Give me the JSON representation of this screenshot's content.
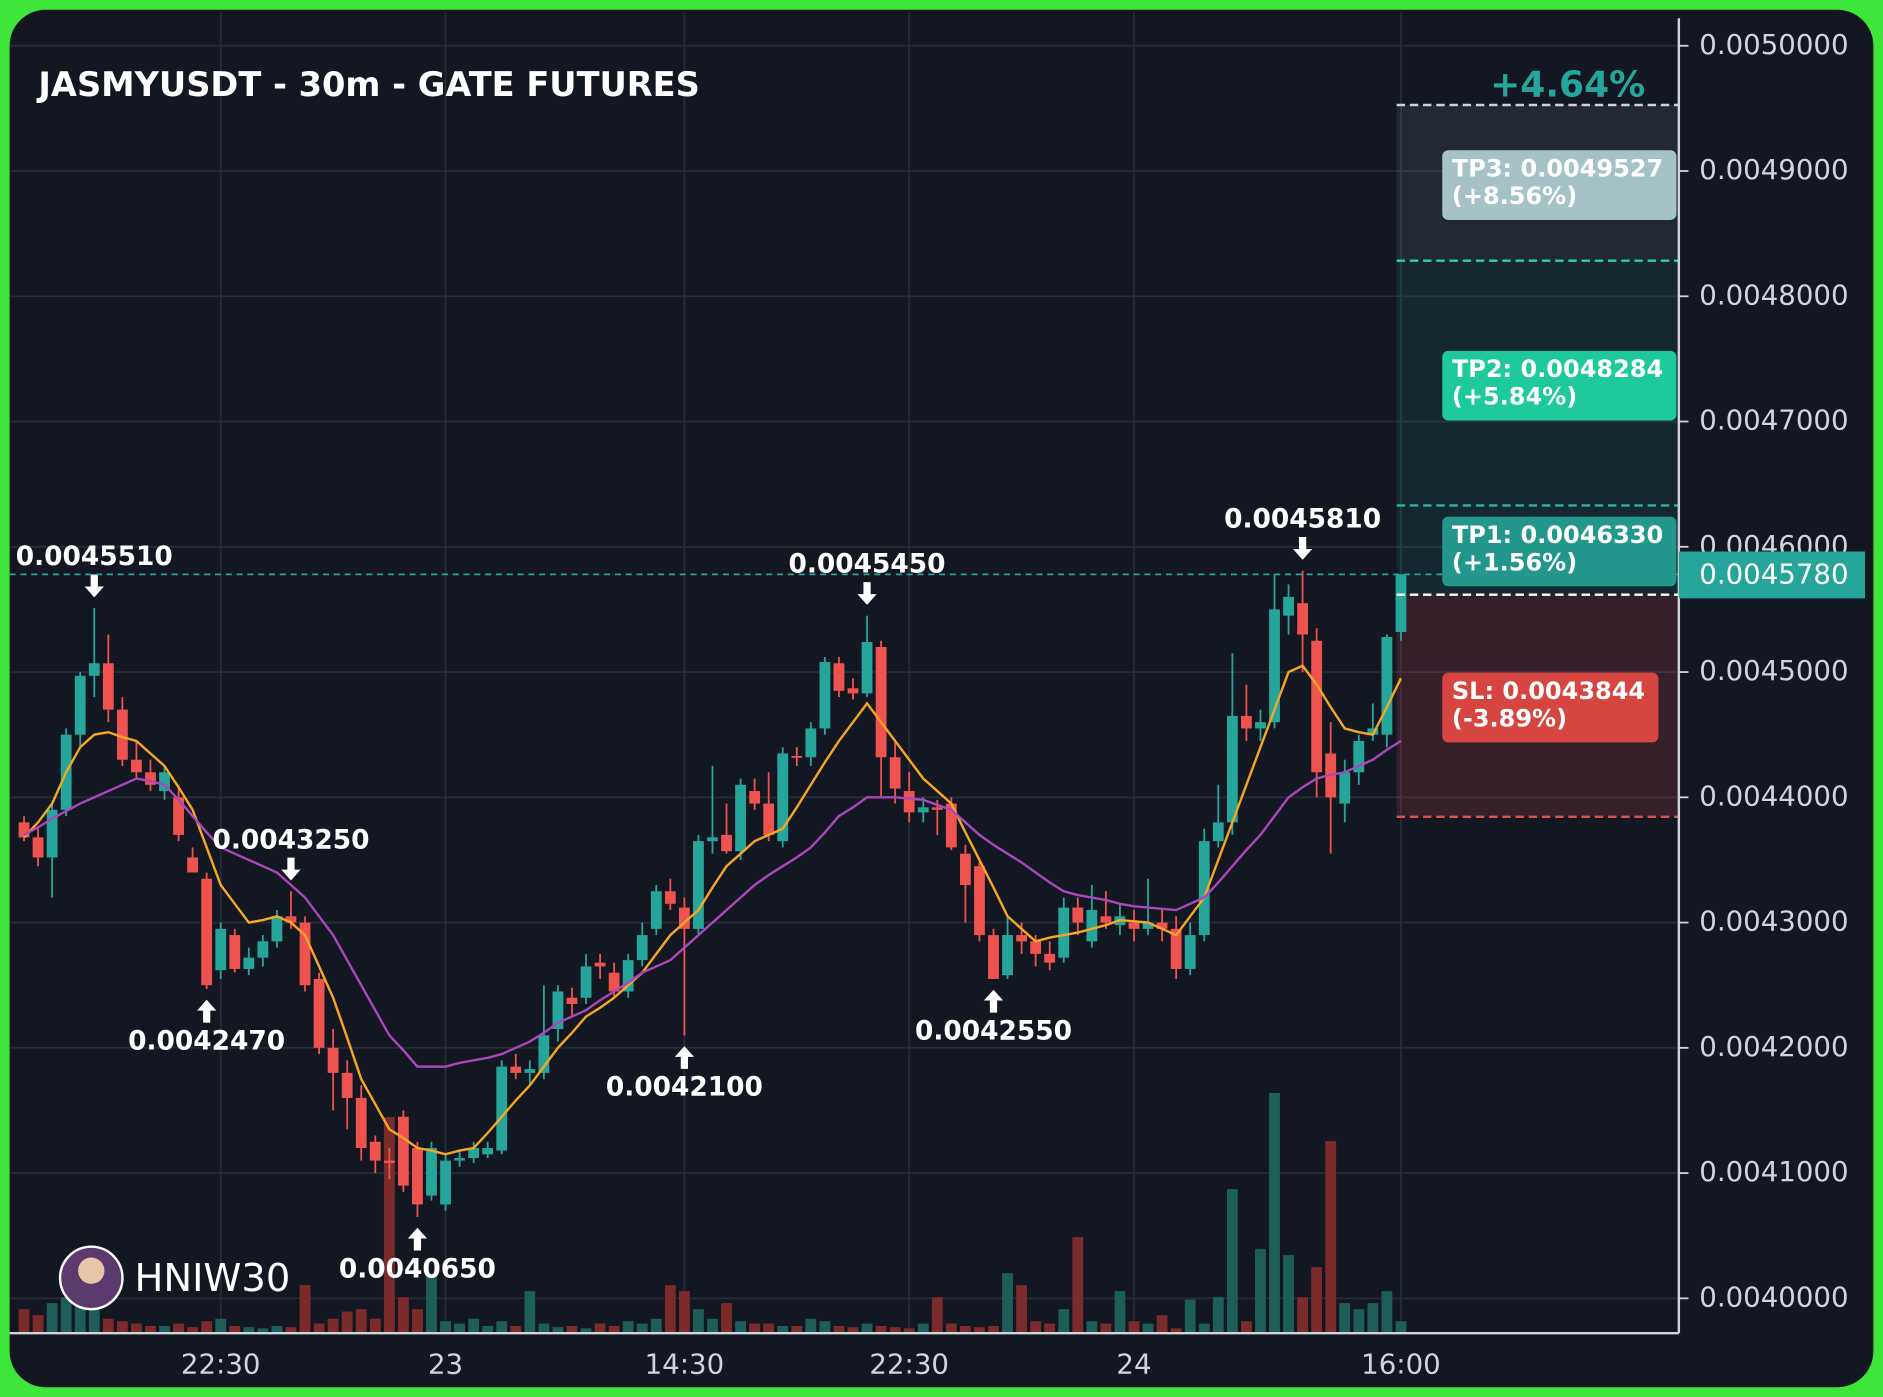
{
  "chart_data": {
    "type": "candlestick",
    "title": "JASMYUSDT - 30m - GATE FUTURES",
    "watermark": "HNIW30",
    "categories": [
      null,
      null,
      null,
      null,
      null,
      null,
      null,
      null,
      null,
      null,
      null,
      null,
      null,
      null,
      "22:30",
      null,
      null,
      null,
      null,
      null,
      null,
      null,
      null,
      null,
      null,
      null,
      null,
      null,
      null,
      null,
      "23",
      null,
      null,
      null,
      null,
      null,
      null,
      null,
      null,
      null,
      null,
      null,
      null,
      null,
      null,
      null,
      null,
      "14:30",
      null,
      null,
      null,
      null,
      null,
      null,
      null,
      null,
      null,
      null,
      null,
      null,
      null,
      null,
      null,
      "22:30",
      null,
      null,
      null,
      null,
      null,
      null,
      null,
      null,
      null,
      null,
      null,
      null,
      null,
      null,
      null,
      "24",
      null,
      null,
      null,
      null,
      null,
      null,
      null,
      null,
      null,
      null,
      null,
      null,
      null,
      null,
      null,
      null,
      null,
      null,
      "16:00"
    ],
    "open": [
      0.00438,
      0.004368,
      0.004352,
      0.00439,
      0.00445,
      0.004497,
      0.004507,
      0.00447,
      0.00443,
      0.00442,
      0.004405,
      0.0044,
      0.004352,
      0.004335,
      0.004262,
      0.00429,
      0.004263,
      0.004272,
      0.004285,
      0.004305,
      0.0043,
      0.004255,
      0.0042,
      0.00418,
      0.00416,
      0.004125,
      0.00411,
      0.004145,
      0.00412,
      0.004082,
      0.004075,
      0.00411,
      0.004112,
      0.004115,
      0.004118,
      0.004185,
      0.00418,
      0.00418,
      0.004215,
      0.00424,
      0.00424,
      0.004268,
      0.00426,
      0.004245,
      0.00427,
      0.004295,
      0.004325,
      0.004312,
      0.004295,
      0.004365,
      0.00437,
      0.004357,
      0.004405,
      0.004395,
      0.004365,
      0.004433,
      0.004432,
      0.004455,
      0.004507,
      0.004487,
      0.004483,
      0.00452,
      0.004432,
      0.004405,
      0.004388,
      0.004392,
      0.004395,
      0.004355,
      0.004345,
      0.00429,
      0.004258,
      0.00429,
      0.004285,
      0.004275,
      0.004272,
      0.004312,
      0.004285,
      0.004305,
      0.004298,
      0.0043,
      0.004295,
      0.0043,
      0.004295,
      0.004263,
      0.00429,
      0.004365,
      0.00438,
      0.004465,
      0.004455,
      0.00446,
      0.004545,
      0.004555,
      0.004525,
      0.004435,
      0.004395,
      0.00442,
      0.00445,
      0.00445,
      0.004532
    ],
    "high": [
      0.004385,
      0.004375,
      0.004395,
      0.004455,
      0.0045,
      0.004551,
      0.00453,
      0.00448,
      0.004445,
      0.00443,
      0.004425,
      0.00441,
      0.00436,
      0.00434,
      0.0043,
      0.004295,
      0.00428,
      0.00429,
      0.00431,
      0.004325,
      0.004305,
      0.00426,
      0.004215,
      0.00419,
      0.00417,
      0.00413,
      0.00412,
      0.00415,
      0.004125,
      0.004125,
      0.004115,
      0.004118,
      0.004125,
      0.004125,
      0.00419,
      0.004195,
      0.00419,
      0.00425,
      0.00425,
      0.004248,
      0.004275,
      0.004275,
      0.004268,
      0.004275,
      0.0043,
      0.00433,
      0.004335,
      0.00432,
      0.00437,
      0.004425,
      0.004395,
      0.004415,
      0.004415,
      0.00442,
      0.00444,
      0.00444,
      0.00446,
      0.004512,
      0.004512,
      0.004495,
      0.004545,
      0.004525,
      0.004445,
      0.00442,
      0.0044,
      0.004398,
      0.0044,
      0.004362,
      0.00435,
      0.004295,
      0.004305,
      0.0043,
      0.00429,
      0.004285,
      0.00432,
      0.00432,
      0.00433,
      0.004325,
      0.004315,
      0.00431,
      0.004335,
      0.00431,
      0.004305,
      0.0043,
      0.004375,
      0.00441,
      0.004515,
      0.00449,
      0.00447,
      0.004578,
      0.00457,
      0.004581,
      0.004535,
      0.00446,
      0.00443,
      0.00445,
      0.004475,
      0.00453,
      0.004578
    ],
    "low": [
      0.004365,
      0.004345,
      0.00432,
      0.004385,
      0.00444,
      0.00448,
      0.00446,
      0.004425,
      0.004415,
      0.004405,
      0.004398,
      0.004365,
      0.00434,
      0.004247,
      0.004255,
      0.00426,
      0.004258,
      0.004265,
      0.00428,
      0.004295,
      0.004245,
      0.004195,
      0.00415,
      0.004135,
      0.00411,
      0.0041,
      0.004095,
      0.004085,
      0.004065,
      0.004078,
      0.00407,
      0.004105,
      0.004108,
      0.004112,
      0.004115,
      0.004175,
      0.00417,
      0.004175,
      0.004205,
      0.004225,
      0.004235,
      0.004255,
      0.00424,
      0.00424,
      0.004265,
      0.00429,
      0.00431,
      0.00421,
      0.00429,
      0.004355,
      0.004355,
      0.00435,
      0.00439,
      0.004365,
      0.00436,
      0.004425,
      0.004425,
      0.00445,
      0.00448,
      0.004478,
      0.00448,
      0.0044,
      0.004395,
      0.00438,
      0.00438,
      0.00437,
      0.004358,
      0.0043,
      0.004285,
      0.004255,
      0.004255,
      0.004275,
      0.004265,
      0.004262,
      0.004268,
      0.00429,
      0.00428,
      0.004295,
      0.00429,
      0.004285,
      0.00429,
      0.004285,
      0.004255,
      0.004258,
      0.004285,
      0.00436,
      0.00437,
      0.004445,
      0.004445,
      0.004455,
      0.00453,
      0.0045,
      0.0044,
      0.004355,
      0.00438,
      0.00441,
      0.004445,
      0.00444,
      0.004525
    ],
    "close": [
      0.004368,
      0.004352,
      0.00439,
      0.00445,
      0.004497,
      0.004507,
      0.00447,
      0.00443,
      0.00442,
      0.00441,
      0.00442,
      0.00437,
      0.00434,
      0.00425,
      0.004295,
      0.004263,
      0.004272,
      0.004285,
      0.004305,
      0.0043,
      0.00425,
      0.0042,
      0.00418,
      0.00416,
      0.00412,
      0.00411,
      0.004108,
      0.00409,
      0.004075,
      0.00412,
      0.00411,
      0.004112,
      0.00412,
      0.00412,
      0.004185,
      0.00418,
      0.004183,
      0.00421,
      0.004245,
      0.004235,
      0.004265,
      0.004265,
      0.004245,
      0.00427,
      0.00429,
      0.004325,
      0.004315,
      0.004295,
      0.004365,
      0.004368,
      0.004357,
      0.00441,
      0.004395,
      0.00437,
      0.004435,
      0.004432,
      0.004455,
      0.004508,
      0.004485,
      0.004483,
      0.004524,
      0.004432,
      0.004407,
      0.004388,
      0.004392,
      0.00439,
      0.00436,
      0.00433,
      0.00429,
      0.004255,
      0.00429,
      0.004285,
      0.004275,
      0.004268,
      0.004312,
      0.0043,
      0.00431,
      0.0043,
      0.004305,
      0.004295,
      0.0043,
      0.004295,
      0.004263,
      0.00429,
      0.004365,
      0.00438,
      0.004465,
      0.004455,
      0.00446,
      0.00455,
      0.00456,
      0.00453,
      0.00442,
      0.0044,
      0.00442,
      0.004445,
      0.004455,
      0.004528,
      0.004578
    ],
    "volume": [
      20,
      15,
      25,
      30,
      22,
      28,
      12,
      10,
      8,
      6,
      6,
      8,
      5,
      10,
      12,
      6,
      5,
      4,
      6,
      5,
      40,
      8,
      12,
      18,
      20,
      12,
      180,
      30,
      20,
      50,
      10,
      8,
      12,
      6,
      10,
      6,
      35,
      8,
      5,
      6,
      4,
      8,
      6,
      10,
      8,
      12,
      40,
      35,
      20,
      12,
      25,
      10,
      8,
      8,
      6,
      6,
      12,
      10,
      6,
      5,
      8,
      6,
      5,
      4,
      8,
      30,
      8,
      6,
      5,
      6,
      50,
      40,
      10,
      8,
      20,
      80,
      10,
      8,
      35,
      10,
      8,
      15,
      4,
      28,
      8,
      30,
      120,
      10,
      70,
      200,
      65,
      30,
      55,
      160,
      25,
      20,
      25,
      35,
      10
    ],
    "high_labels": [
      null,
      null,
      null,
      null,
      null,
      "0.0045510",
      null,
      null,
      null,
      null,
      null,
      null,
      null,
      null,
      null,
      null,
      null,
      null,
      null,
      "0.0043250",
      null,
      null,
      null,
      null,
      null,
      null,
      null,
      null,
      null,
      null,
      null,
      null,
      null,
      null,
      null,
      null,
      null,
      null,
      null,
      null,
      null,
      null,
      null,
      null,
      null,
      null,
      null,
      null,
      null,
      null,
      null,
      null,
      null,
      null,
      null,
      null,
      null,
      null,
      null,
      null,
      "0.0045450",
      null,
      null,
      null,
      null,
      null,
      null,
      null,
      null,
      null,
      null,
      null,
      null,
      null,
      null,
      null,
      null,
      null,
      null,
      null,
      null,
      null,
      null,
      null,
      null,
      null,
      null,
      null,
      null,
      null,
      null,
      "0.0045810",
      null,
      null,
      null,
      null,
      null,
      null,
      null
    ],
    "low_labels": [
      null,
      null,
      null,
      null,
      null,
      null,
      null,
      null,
      null,
      null,
      null,
      null,
      null,
      "0.0042470",
      null,
      null,
      null,
      null,
      null,
      null,
      null,
      null,
      null,
      null,
      null,
      null,
      null,
      null,
      "0.0040650",
      null,
      null,
      null,
      null,
      null,
      null,
      null,
      null,
      null,
      null,
      null,
      null,
      null,
      null,
      null,
      null,
      null,
      null,
      "0.0042100",
      null,
      null,
      null,
      null,
      null,
      null,
      null,
      null,
      null,
      null,
      null,
      null,
      null,
      null,
      null,
      null,
      null,
      null,
      null,
      null,
      null,
      "0.0042550",
      null,
      null,
      null,
      null,
      null,
      null,
      null,
      null,
      null,
      null,
      null,
      null,
      null,
      null,
      null,
      null,
      null,
      null,
      null,
      null,
      null,
      null,
      null,
      null,
      null,
      null,
      null,
      null,
      null
    ],
    "moving_averages": [
      {
        "color": "#f5a623",
        "values": [
          0.004368,
          0.00438,
          0.004395,
          0.00442,
          0.00444,
          0.00445,
          0.004452,
          0.004448,
          0.004445,
          0.004435,
          0.004425,
          0.004408,
          0.00439,
          0.00436,
          0.00433,
          0.004315,
          0.0043,
          0.004302,
          0.004305,
          0.0043,
          0.00429,
          0.004265,
          0.00424,
          0.004208,
          0.004175,
          0.004155,
          0.004135,
          0.004128,
          0.00412,
          0.004118,
          0.004115,
          0.004118,
          0.00412,
          0.004132,
          0.004145,
          0.004158,
          0.00417,
          0.004185,
          0.0042,
          0.004212,
          0.004225,
          0.004232,
          0.00424,
          0.00425,
          0.00426,
          0.004275,
          0.00429,
          0.0043,
          0.00431,
          0.004328,
          0.004345,
          0.004355,
          0.004365,
          0.00437,
          0.004375,
          0.004392,
          0.00441,
          0.004428,
          0.004445,
          0.00446,
          0.004475,
          0.00446,
          0.004445,
          0.00443,
          0.004415,
          0.004405,
          0.004395,
          0.004372,
          0.00435,
          0.004328,
          0.004305,
          0.004295,
          0.004285,
          0.004288,
          0.00429,
          0.004292,
          0.004295,
          0.004298,
          0.004302,
          0.004301,
          0.0043,
          0.004295,
          0.00429,
          0.004305,
          0.00432,
          0.00435,
          0.00438,
          0.00441,
          0.00444,
          0.00447,
          0.0045,
          0.004505,
          0.00449,
          0.004472,
          0.004455,
          0.004452,
          0.00445,
          0.004472,
          0.004495
        ]
      },
      {
        "color": "#ab47bc",
        "values": [
          0.00437,
          0.004376,
          0.004383,
          0.004389,
          0.004395,
          0.0044,
          0.004405,
          0.00441,
          0.004415,
          0.004413,
          0.00441,
          0.004398,
          0.004385,
          0.004372,
          0.00436,
          0.004355,
          0.00435,
          0.004345,
          0.00434,
          0.00433,
          0.00432,
          0.004305,
          0.00429,
          0.00427,
          0.00425,
          0.00423,
          0.00421,
          0.004198,
          0.004185,
          0.004185,
          0.004185,
          0.004188,
          0.00419,
          0.004192,
          0.004195,
          0.0042,
          0.004205,
          0.004212,
          0.00422,
          0.004225,
          0.00423,
          0.004238,
          0.004245,
          0.004252,
          0.00426,
          0.004265,
          0.00427,
          0.00428,
          0.00429,
          0.0043,
          0.00431,
          0.00432,
          0.00433,
          0.004338,
          0.004345,
          0.004352,
          0.00436,
          0.004372,
          0.004385,
          0.004392,
          0.0044,
          0.0044,
          0.0044,
          0.004399,
          0.004398,
          0.004394,
          0.00439,
          0.00438,
          0.00437,
          0.004362,
          0.004355,
          0.004348,
          0.00434,
          0.004332,
          0.004325,
          0.004322,
          0.00432,
          0.004318,
          0.004315,
          0.004313,
          0.004312,
          0.004311,
          0.00431,
          0.004315,
          0.00432,
          0.004332,
          0.004345,
          0.004358,
          0.00437,
          0.004385,
          0.0044,
          0.004408,
          0.004415,
          0.004418,
          0.00442,
          0.004425,
          0.00443,
          0.004438,
          0.004445
        ]
      }
    ],
    "up_color": "#26a69a",
    "down_color": "#ef5350",
    "volume_up_color": "#1d5f58",
    "volume_down_color": "#7c2b2b",
    "ylim": [
      0.0039722,
      0.0050268
    ],
    "yticks": [
      {
        "value": 0.004,
        "label": "0.0040000"
      },
      {
        "value": 0.0041,
        "label": "0.0041000"
      },
      {
        "value": 0.0042,
        "label": "0.0042000"
      },
      {
        "value": 0.0043,
        "label": "0.0043000"
      },
      {
        "value": 0.0044,
        "label": "0.0044000"
      },
      {
        "value": 0.0045,
        "label": "0.0045000"
      },
      {
        "value": 0.0046,
        "label": "0.0046000"
      },
      {
        "value": 0.0047,
        "label": "0.0047000"
      },
      {
        "value": 0.0048,
        "label": "0.0048000"
      },
      {
        "value": 0.0049,
        "label": "0.0049000"
      },
      {
        "value": 0.005,
        "label": "0.0050000"
      }
    ],
    "grid": true,
    "last_price": {
      "value": 0.004578,
      "label": "0.0045780",
      "color": "#26a69a"
    },
    "trade": {
      "gain_label": "+4.64%",
      "entry": 0.0045618,
      "targets": [
        {
          "value": 0.0049527,
          "label": "TP3: 0.0049527",
          "change": "(+8.56%)",
          "color": "#a5c3c6",
          "line_color": "#c8d4d8"
        },
        {
          "value": 0.0048284,
          "label": "TP2: 0.0048284",
          "change": "(+5.84%)",
          "color": "#1ec99b",
          "line_color": "#2bd1a6"
        },
        {
          "value": 0.004633,
          "label": "TP1: 0.0046330",
          "change": "(+1.56%)",
          "color": "#23978b",
          "line_color": "#2bb5a5"
        }
      ],
      "stop": {
        "value": 0.0043844,
        "label": "SL: 0.0043844",
        "change": "(-3.89%)",
        "color": "#d6453f",
        "line_color": "#e2504b"
      }
    }
  }
}
